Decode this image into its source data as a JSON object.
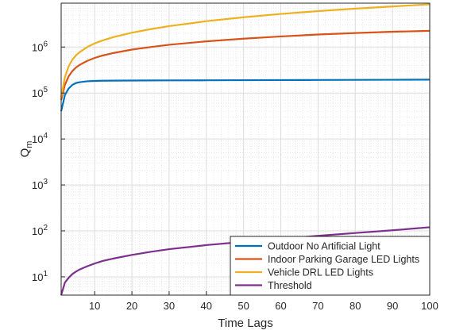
{
  "chart_data": {
    "type": "line",
    "title": "",
    "xlabel": "Time Lags",
    "ylabel": {
      "base": "Q",
      "subscript": "m"
    },
    "x_scale": "linear",
    "y_scale": "log",
    "xlim": [
      1,
      100
    ],
    "ylim": [
      4,
      9000000
    ],
    "x_ticks": [
      10,
      20,
      30,
      40,
      50,
      60,
      70,
      80,
      90,
      100
    ],
    "y_ticks": [
      {
        "value": 10,
        "base": "10",
        "exp": "1"
      },
      {
        "value": 100,
        "base": "10",
        "exp": "2"
      },
      {
        "value": 1000,
        "base": "10",
        "exp": "3"
      },
      {
        "value": 10000,
        "base": "10",
        "exp": "4"
      },
      {
        "value": 100000,
        "base": "10",
        "exp": "5"
      },
      {
        "value": 1000000,
        "base": "10",
        "exp": "6"
      }
    ],
    "grid": true,
    "minor_grid": true,
    "legend_position": "bottom-right",
    "x": [
      1,
      2,
      3,
      4,
      5,
      6,
      8,
      10,
      12,
      15,
      20,
      25,
      30,
      40,
      50,
      60,
      70,
      80,
      90,
      100
    ],
    "series": [
      {
        "name": "Outdoor No Artificial Light",
        "color": "#0072BD",
        "values": [
          40000,
          90000,
          125000,
          150000,
          165000,
          172000,
          180000,
          183000,
          185000,
          186000,
          187000,
          187500,
          188000,
          189000,
          190000,
          191000,
          192000,
          193000,
          194000,
          195000
        ]
      },
      {
        "name": "Indoor Parking Garage LED Lights",
        "color": "#D95319",
        "values": [
          70000,
          150000,
          230000,
          300000,
          360000,
          410000,
          500000,
          580000,
          650000,
          740000,
          880000,
          1000000,
          1120000,
          1330000,
          1520000,
          1700000,
          1870000,
          2020000,
          2150000,
          2250000
        ]
      },
      {
        "name": "Vehicle DRL LED Lights",
        "color": "#EDB120",
        "values": [
          80000,
          220000,
          380000,
          530000,
          660000,
          780000,
          1000000,
          1200000,
          1380000,
          1640000,
          2050000,
          2450000,
          2850000,
          3650000,
          4450000,
          5250000,
          6050000,
          6850000,
          7650000,
          8500000
        ]
      },
      {
        "name": "Threshold",
        "color": "#7E2F8E",
        "values": [
          4,
          7.5,
          9.5,
          11.5,
          13,
          14.5,
          17,
          19.5,
          22,
          25,
          30,
          35,
          40,
          49,
          58,
          67,
          78,
          90,
          103,
          120
        ]
      }
    ]
  }
}
